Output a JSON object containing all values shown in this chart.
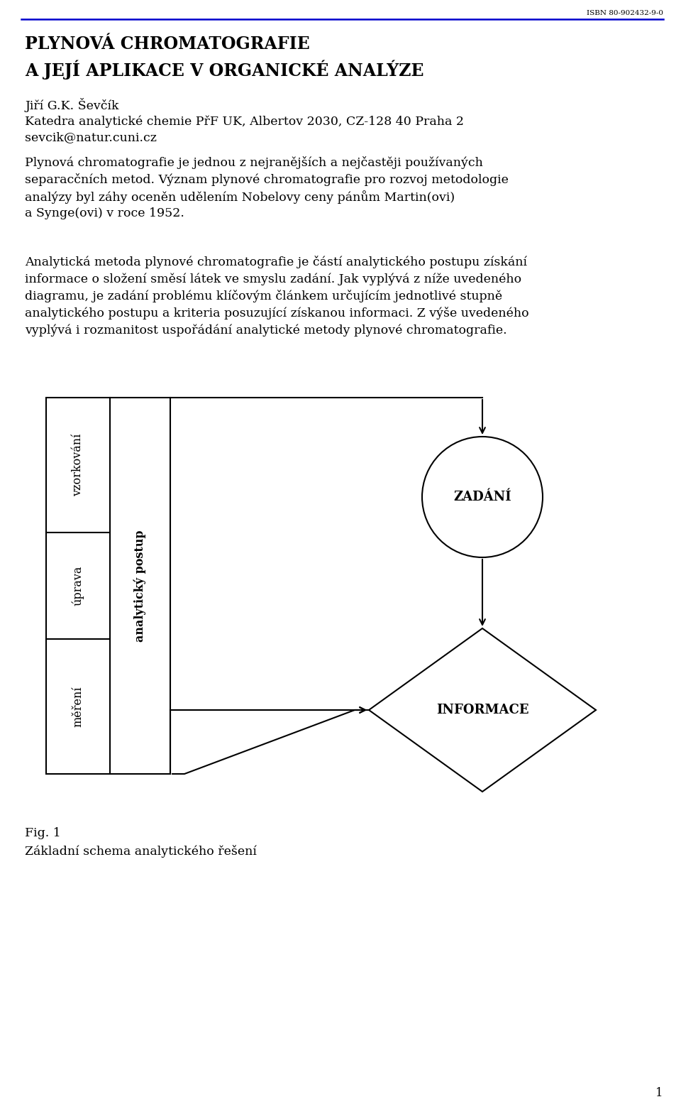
{
  "isbn": "ISBN 80-902432-9-0",
  "title_line1": "PLYNOVÁ CHROMATOGRAFIE",
  "title_line2": "A JEJÍ APLIKACE V ORGANICKÉ ANALÝZE",
  "author": "Jiří G.K. Ševčík",
  "affiliation": "Katedra analytické chemie PřF UK, Albertov 2030, CZ-128 40 Praha 2",
  "email": "sevcik@natur.cuni.cz",
  "para1_line1": "Plynová chromatografie je jednou z nejranějších a nejčastěji používaných",
  "para1_line2": "separacčních metod. Význam plynové chromatografie pro rozvoj metodologie",
  "para1_line3": "analýzy byl záhy oceněn udělením Nobelovy ceny pánům Martin(ovi)",
  "para1_line4": "a Synge(ovi) v roce 1952.",
  "para2_line1": "Analytická metoda plynové chromatografie je částí analytického postupu získání",
  "para2_line2": "informace o složení směsí látek ve smyslu zadání. Jak vyplývá z níže uvedeného",
  "para2_line3": "diagramu, je zadání problému klíčovým článkem určujícím jednotlivé stupně",
  "para2_line4": "analytického postupu a kriteria posuzující získanou informaci. Z výše uvedeného",
  "para2_line5": "vyplývá i rozmanitost uspořádání analytické metody plynové chromatografie.",
  "fig_caption_line1": "Fig. 1",
  "fig_caption_line2": "Základní schema analytického řešení",
  "page_number": "1",
  "background_color": "#ffffff",
  "text_color": "#000000",
  "blue_line_color": "#0000cc",
  "label_mereni": "měření",
  "label_uprava": "úprava",
  "label_vzorkovani": "vzorkování",
  "label_analyticky_postup": "analytický postup",
  "zadani_label": "ZADÁNÍ",
  "informace_label": "INFORMACE"
}
